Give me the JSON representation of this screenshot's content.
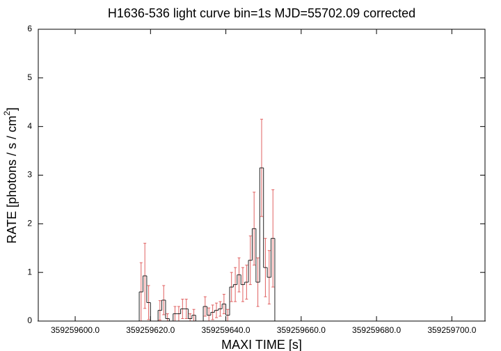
{
  "chart_data": {
    "type": "step_errorbar",
    "title": "H1636-536 light curve bin=1s MJD=55702.09 corrected",
    "x_label": "MAXI TIME [s]",
    "y_label": "RATE [photons / s / cm",
    "y_label_sup": "2",
    "y_label_end": "]",
    "bin_width": 1,
    "xlim": [
      359259590.2,
      359259708.8
    ],
    "ylim": [
      0,
      6
    ],
    "yticks": [
      0,
      1,
      2,
      3,
      4,
      5,
      6
    ],
    "xticks": [
      {
        "value": 359259600,
        "label": "359259600.0"
      },
      {
        "value": 359259620,
        "label": "359259620.0"
      },
      {
        "value": 359259640,
        "label": "359259640.0"
      },
      {
        "value": 359259660,
        "label": "359259660.0"
      },
      {
        "value": 359259680,
        "label": "359259680.0"
      },
      {
        "value": 359259700,
        "label": "359259700.0"
      }
    ],
    "line_color": "#202020",
    "error_color": "#e06060",
    "x": [
      359259590.5,
      359259591.5,
      359259592.5,
      359259593.5,
      359259594.5,
      359259595.5,
      359259596.5,
      359259597.5,
      359259598.5,
      359259599.5,
      359259600.5,
      359259601.5,
      359259602.5,
      359259603.5,
      359259604.5,
      359259605.5,
      359259606.5,
      359259607.5,
      359259608.5,
      359259609.5,
      359259610.5,
      359259611.5,
      359259612.5,
      359259613.5,
      359259614.5,
      359259615.5,
      359259616.5,
      359259617.5,
      359259618.5,
      359259619.5,
      359259620.5,
      359259621.5,
      359259622.5,
      359259623.5,
      359259624.5,
      359259625.5,
      359259626.5,
      359259627.5,
      359259628.5,
      359259629.5,
      359259630.5,
      359259631.5,
      359259632.5,
      359259633.5,
      359259634.5,
      359259635.5,
      359259636.5,
      359259637.5,
      359259638.5,
      359259639.5,
      359259640.5,
      359259641.5,
      359259642.5,
      359259643.5,
      359259644.5,
      359259645.5,
      359259646.5,
      359259647.5,
      359259648.5,
      359259649.5,
      359259650.5,
      359259651.5,
      359259652.5,
      359259653.5,
      359259654.5,
      359259655.5,
      359259656.5,
      359259657.5,
      359259658.5,
      359259659.5,
      359259660.5,
      359259661.5,
      359259662.5,
      359259663.5,
      359259664.5,
      359259665.5,
      359259666.5,
      359259667.5,
      359259668.5,
      359259669.5,
      359259670.5,
      359259671.5,
      359259672.5,
      359259673.5,
      359259674.5,
      359259675.5,
      359259676.5,
      359259677.5,
      359259678.5,
      359259679.5,
      359259680.5,
      359259681.5,
      359259682.5,
      359259683.5,
      359259684.5,
      359259685.5,
      359259686.5,
      359259687.5,
      359259688.5,
      359259689.5,
      359259690.5,
      359259691.5,
      359259692.5,
      359259693.5,
      359259694.5,
      359259695.5,
      359259696.5,
      359259697.5,
      359259698.5,
      359259699.5,
      359259700.5,
      359259701.5,
      359259702.5,
      359259703.5,
      359259704.5,
      359259705.5,
      359259706.5,
      359259707.5,
      359259708.5
    ],
    "values": [
      0,
      0,
      0,
      0,
      0,
      0,
      0,
      0,
      0,
      0,
      0,
      0,
      0,
      0,
      0,
      0,
      0,
      0,
      0,
      0,
      0,
      0,
      0,
      0,
      0,
      0,
      0,
      0.6,
      0.93,
      0.38,
      0,
      0,
      0.22,
      0.43,
      0.05,
      0,
      0.15,
      0.15,
      0.25,
      0.25,
      0.05,
      0.12,
      0,
      0,
      0.3,
      0.12,
      0.18,
      0.22,
      0.25,
      0.35,
      0.12,
      0.7,
      0.75,
      0.95,
      0.75,
      0.8,
      1.25,
      1.9,
      0.8,
      3.15,
      1.1,
      0.9,
      1.7,
      0,
      0,
      0,
      0,
      0,
      0,
      0,
      0,
      0,
      0,
      0,
      0,
      0,
      0,
      0,
      0,
      0,
      0,
      0,
      0,
      0,
      0,
      0,
      0,
      0,
      0,
      0,
      0,
      0,
      0,
      0,
      0,
      0,
      0,
      0,
      0,
      0,
      0,
      0,
      0,
      0,
      0,
      0,
      0,
      0,
      0,
      0,
      0,
      0,
      0,
      0,
      0,
      0,
      0,
      0,
      0
    ],
    "errors": [
      0,
      0,
      0,
      0,
      0,
      0,
      0,
      0,
      0,
      0,
      0,
      0,
      0,
      0,
      0,
      0,
      0,
      0,
      0,
      0,
      0,
      0,
      0,
      0,
      0,
      0,
      0,
      0.6,
      0.67,
      0.35,
      0,
      0,
      0.2,
      0.3,
      0.1,
      0,
      0.15,
      0.15,
      0.2,
      0.2,
      0.1,
      0.12,
      0,
      0,
      0.2,
      0.15,
      0.15,
      0.15,
      0.15,
      0.2,
      0.12,
      0.3,
      0.35,
      0.35,
      0.35,
      0.35,
      0.5,
      0.75,
      0.5,
      1.0,
      0.6,
      0.55,
      1.0,
      0,
      0,
      0,
      0,
      0,
      0,
      0,
      0,
      0,
      0,
      0,
      0,
      0,
      0,
      0,
      0,
      0,
      0,
      0,
      0,
      0,
      0,
      0,
      0,
      0,
      0,
      0,
      0,
      0,
      0,
      0,
      0,
      0,
      0,
      0,
      0,
      0,
      0,
      0,
      0,
      0,
      0,
      0,
      0,
      0,
      0,
      0,
      0,
      0,
      0,
      0,
      0,
      0,
      0,
      0,
      0
    ]
  }
}
